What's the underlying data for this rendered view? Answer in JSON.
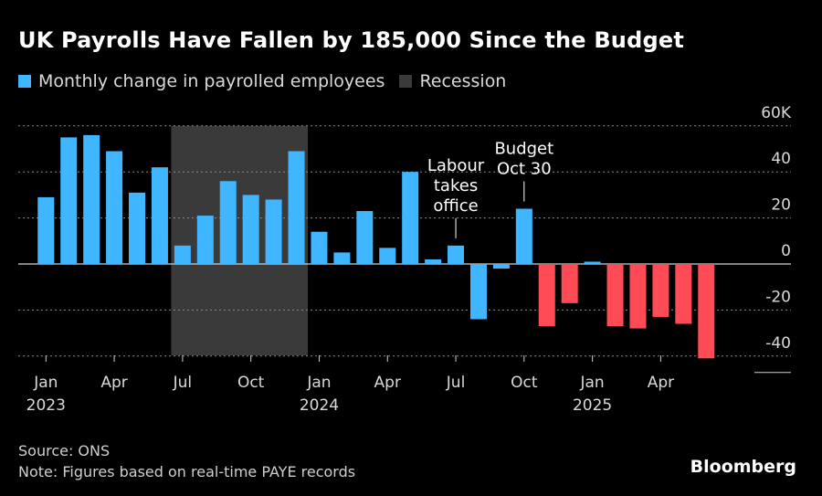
{
  "title": "UK Payrolls Have Fallen by 185,000 Since the Budget",
  "legend": {
    "series_label": "Monthly change in payrolled employees",
    "recession_label": "Recession"
  },
  "footer": {
    "source": "Source: ONS",
    "note": "Note: Figures based on real-time PAYE records",
    "brand": "Bloomberg"
  },
  "colors": {
    "positive_pre_budget": "#3fb6ff",
    "negative_post_budget": "#ff4b55",
    "recession_shade": "#3a3a3a",
    "grid": "#8a8a8a"
  },
  "chart_data": {
    "type": "bar",
    "series_name": "Monthly change in payrolled employees",
    "categories": [
      "2023-01",
      "2023-02",
      "2023-03",
      "2023-04",
      "2023-05",
      "2023-06",
      "2023-07",
      "2023-08",
      "2023-09",
      "2023-10",
      "2023-11",
      "2023-12",
      "2024-01",
      "2024-02",
      "2024-03",
      "2024-04",
      "2024-05",
      "2024-06",
      "2024-07",
      "2024-08",
      "2024-09",
      "2024-10",
      "2024-11",
      "2024-12",
      "2025-01",
      "2025-02",
      "2025-03",
      "2025-04",
      "2025-05",
      "2025-06"
    ],
    "values": [
      29,
      55,
      56,
      49,
      31,
      42,
      8,
      21,
      36,
      30,
      28,
      49,
      14,
      5,
      23,
      7,
      40,
      2,
      8,
      -24,
      -2,
      24,
      -27,
      -17,
      1,
      -27,
      -28,
      -23,
      -26,
      -41
    ],
    "ylim": [
      -45,
      60
    ],
    "yticks": [
      {
        "value": 60,
        "label": "60K"
      },
      {
        "value": 40,
        "label": "40"
      },
      {
        "value": 20,
        "label": "20"
      },
      {
        "value": 0,
        "label": "0"
      },
      {
        "value": -20,
        "label": "-20"
      },
      {
        "value": -40,
        "label": "-40"
      }
    ],
    "xticks": [
      {
        "index": 0,
        "label": "Jan",
        "year": "2023"
      },
      {
        "index": 3,
        "label": "Apr",
        "year": ""
      },
      {
        "index": 6,
        "label": "Jul",
        "year": ""
      },
      {
        "index": 9,
        "label": "Oct",
        "year": ""
      },
      {
        "index": 12,
        "label": "Jan",
        "year": "2024"
      },
      {
        "index": 15,
        "label": "Apr",
        "year": ""
      },
      {
        "index": 18,
        "label": "Jul",
        "year": ""
      },
      {
        "index": 21,
        "label": "Oct",
        "year": ""
      },
      {
        "index": 24,
        "label": "Jan",
        "year": "2025"
      },
      {
        "index": 27,
        "label": "Apr",
        "year": ""
      }
    ],
    "recession": {
      "start": "2023-07",
      "end": "2023-12"
    },
    "budget_index": 21,
    "annotations": [
      {
        "index": 18,
        "lines": [
          "Labour",
          "takes",
          "office"
        ]
      },
      {
        "index": 21,
        "lines": [
          "Budget",
          "Oct 30"
        ]
      }
    ],
    "grid": true,
    "legend_position": "top-left"
  }
}
